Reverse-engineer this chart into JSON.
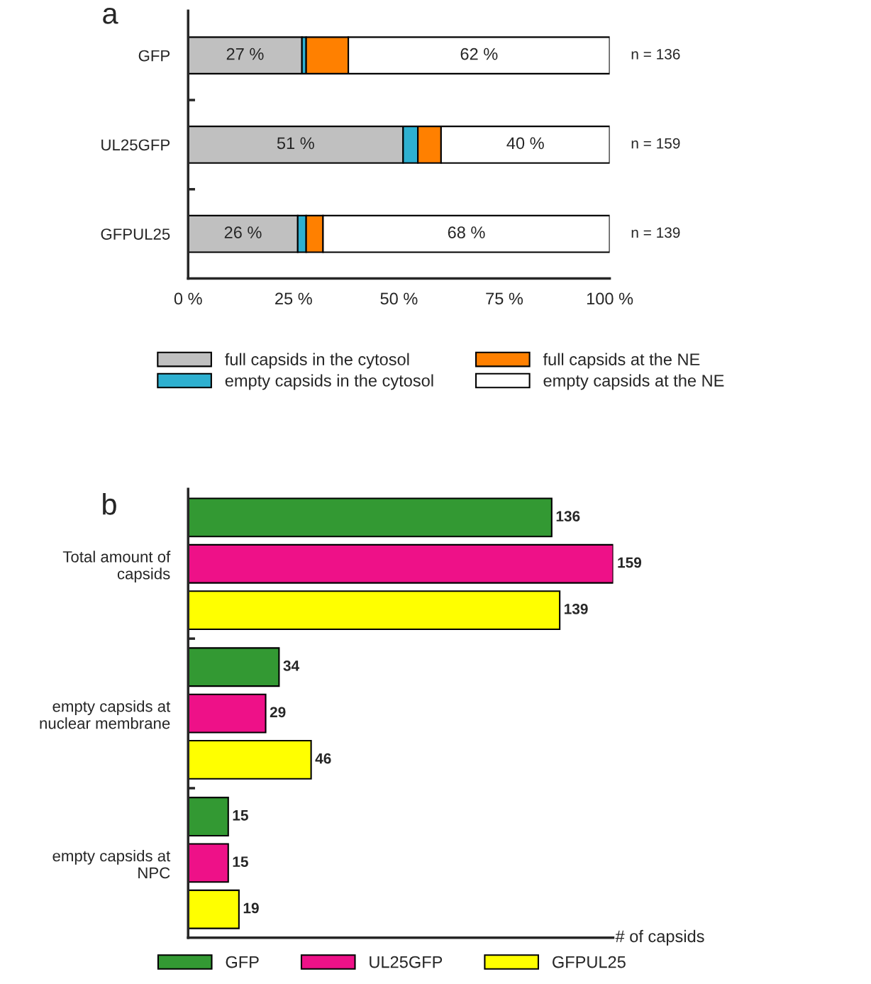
{
  "chart_data": [
    {
      "type": "bar",
      "title": "a",
      "orientation": "horizontal",
      "stacked": true,
      "categories": [
        "GFP",
        "UL25GFP",
        "GFPUL25"
      ],
      "series": [
        {
          "name": "full capsids in the cytosol",
          "color": "#c0c0c0",
          "values": [
            27,
            51,
            26
          ],
          "value_labels": [
            "27 %",
            "51 %",
            "26 %"
          ]
        },
        {
          "name": "empty capsids in the cytosol",
          "color": "#2eb0d0",
          "values": [
            1,
            3.5,
            2
          ]
        },
        {
          "name": "full capsids at the NE",
          "color": "#ff8000",
          "values": [
            10,
            5.5,
            4
          ]
        },
        {
          "name": "empty capsids at the NE",
          "color": "#ffffff",
          "values": [
            62,
            40,
            68
          ],
          "value_labels": [
            "62 %",
            "40 %",
            "68 %"
          ]
        }
      ],
      "xlim": [
        0,
        100
      ],
      "xticks": [
        {
          "value": 0,
          "label": "0 %"
        },
        {
          "value": 25,
          "label": "25 %"
        },
        {
          "value": 50,
          "label": "50 %"
        },
        {
          "value": 75,
          "label": "75 %"
        },
        {
          "value": 100,
          "label": "100 %"
        }
      ],
      "annotations": [
        "n = 136",
        "n = 159",
        "n = 139"
      ],
      "legend": "bottom",
      "grid": false
    },
    {
      "type": "bar",
      "title": "b",
      "orientation": "horizontal",
      "categories": [
        "Total amount of\ncapsids",
        "empty capsids at\nnuclear membrane",
        "empty capsids at\nNPC"
      ],
      "series": [
        {
          "name": "GFP",
          "color": "#339933",
          "values": [
            136,
            34,
            15
          ]
        },
        {
          "name": "UL25GFP",
          "color": "#ee1188",
          "values": [
            159,
            29,
            15
          ]
        },
        {
          "name": "GFPUL25",
          "color": "#ffff00",
          "values": [
            139,
            46,
            19
          ]
        }
      ],
      "xlabel": "# of capsids",
      "data_labels": true,
      "tick_labels": "y",
      "legend": "bottom",
      "grid": false
    }
  ]
}
